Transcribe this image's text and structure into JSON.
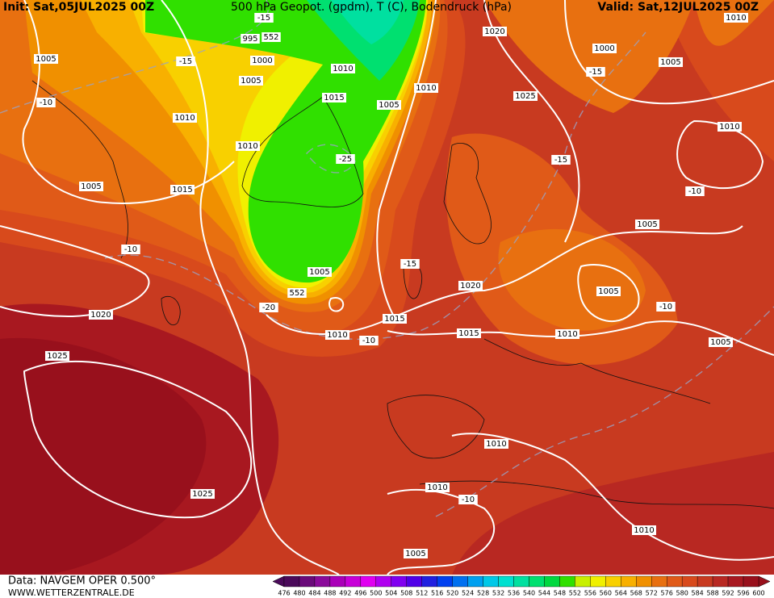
{
  "header": {
    "init": "Init: Sat,05JUL2025 00Z",
    "title": "500 hPa Geopot. (gpdm), T (C), Bodendruck (hPa)",
    "valid": "Valid: Sat,12JUL2025 00Z"
  },
  "footer": {
    "source": "Data: NAVGEM OPER 0.500°",
    "website": "WWW.WETTERZENTRALE.DE"
  },
  "map_labels": [
    "1005",
    "-10",
    "1010",
    "1010",
    "1005",
    "1015",
    "-10",
    "1020",
    "1025",
    "1025",
    "995",
    "552",
    "1000",
    "1005",
    "-15",
    "1010",
    "1015",
    "1005",
    "1010",
    "-25",
    "1005",
    "552",
    "-20",
    "1010",
    "-10",
    "1015",
    "-15",
    "1020",
    "1015",
    "1020",
    "1025",
    "-15",
    "1000",
    "1005",
    "-15",
    "1010",
    "-10",
    "1005",
    "1005",
    "-10",
    "1010",
    "1005",
    "1010",
    "1010",
    "-10",
    "1010",
    "1005",
    "1010",
    "-15"
  ],
  "colorbar": {
    "levels": [
      476,
      480,
      484,
      488,
      492,
      496,
      500,
      504,
      508,
      512,
      516,
      520,
      524,
      528,
      532,
      536,
      540,
      544,
      548,
      552,
      556,
      560,
      564,
      568,
      572,
      576,
      580,
      584,
      588,
      592,
      596,
      600
    ],
    "colors": [
      "#4a0a5a",
      "#6a0a7a",
      "#8a0a9a",
      "#aa00b8",
      "#c800d8",
      "#e000f0",
      "#b000f0",
      "#8000f0",
      "#5000e8",
      "#2020e0",
      "#0040f0",
      "#0070f0",
      "#00a0f0",
      "#00c8e8",
      "#00e0d0",
      "#00e0a0",
      "#00e070",
      "#00d840",
      "#30e000",
      "#c8f000",
      "#f0f000",
      "#f8d000",
      "#f8b000",
      "#f09000",
      "#e87010",
      "#e05a18",
      "#d84a1c",
      "#c83a20",
      "#b82822",
      "#a81820",
      "#98101c"
    ]
  }
}
